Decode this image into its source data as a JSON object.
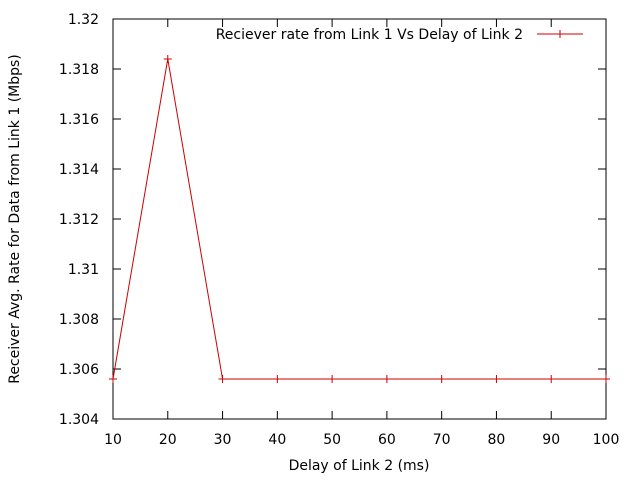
{
  "chart_data": {
    "type": "line",
    "title": "",
    "xlabel": "Delay of Link 2 (ms)",
    "ylabel": "Receiver Avg. Rate for Data from Link 1 (Mbps)",
    "xlim": [
      10,
      100
    ],
    "ylim": [
      1.304,
      1.32
    ],
    "xticks": [
      "10",
      "20",
      "30",
      "40",
      "50",
      "60",
      "70",
      "80",
      "90",
      "100"
    ],
    "yticks": [
      "1.304",
      "1.306",
      "1.308",
      "1.31",
      "1.312",
      "1.314",
      "1.316",
      "1.318",
      "1.32"
    ],
    "grid": false,
    "legend_position": "top-right",
    "series": [
      {
        "name": "Reciever rate from Link 1 Vs Delay of Link 2",
        "color": "#cc0000",
        "marker": "plus",
        "x": [
          10,
          20,
          30,
          40,
          50,
          60,
          70,
          80,
          90,
          100
        ],
        "y": [
          1.3056,
          1.3184,
          1.3056,
          1.3056,
          1.3056,
          1.3056,
          1.3056,
          1.3056,
          1.3056,
          1.3056
        ]
      }
    ]
  }
}
